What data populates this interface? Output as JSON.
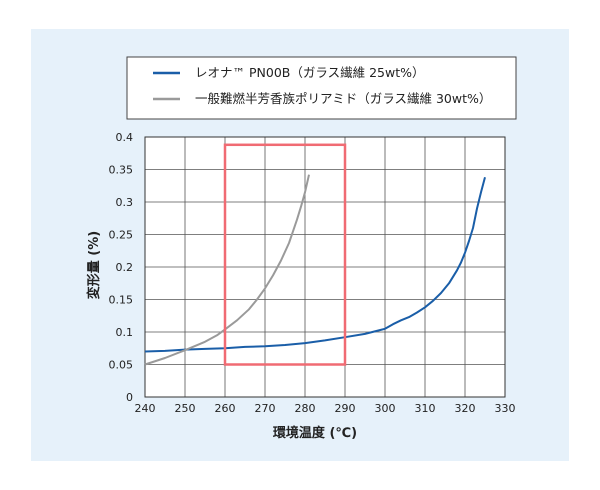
{
  "chart_data": {
    "type": "line",
    "xlabel": "環境温度 (℃)",
    "ylabel": "変形量 (%)",
    "xlim": [
      240,
      330
    ],
    "ylim": [
      0,
      0.4
    ],
    "xticks": [
      240,
      250,
      260,
      270,
      280,
      290,
      300,
      310,
      320,
      330
    ],
    "yticks": [
      0,
      0.05,
      0.1,
      0.15,
      0.2,
      0.25,
      0.3,
      0.35,
      0.4
    ],
    "grid": true,
    "legend_position": "top",
    "series": [
      {
        "name": "レオナ™ PN00B（ガラス繊維 25wt%）",
        "color": "#1a5ea8",
        "x": [
          240,
          245,
          250,
          255,
          260,
          265,
          270,
          275,
          280,
          285,
          290,
          295,
          300,
          302,
          304,
          306,
          308,
          310,
          312,
          314,
          316,
          318,
          319,
          320,
          321,
          322,
          323,
          324,
          325
        ],
        "y": [
          0.07,
          0.071,
          0.073,
          0.074,
          0.075,
          0.077,
          0.078,
          0.08,
          0.083,
          0.087,
          0.092,
          0.097,
          0.105,
          0.112,
          0.118,
          0.123,
          0.13,
          0.138,
          0.148,
          0.16,
          0.175,
          0.195,
          0.207,
          0.222,
          0.24,
          0.26,
          0.29,
          0.315,
          0.338
        ]
      },
      {
        "name": "一般難燃半芳香族ポリアミド（ガラス繊維 30wt%）",
        "color": "#9a9a9a",
        "x": [
          240,
          245,
          250,
          255,
          258,
          260,
          263,
          266,
          268,
          270,
          272,
          274,
          276,
          277,
          278,
          279,
          280,
          281
        ],
        "y": [
          0.05,
          0.06,
          0.072,
          0.085,
          0.095,
          0.104,
          0.118,
          0.135,
          0.15,
          0.167,
          0.187,
          0.21,
          0.237,
          0.255,
          0.273,
          0.293,
          0.315,
          0.342
        ]
      }
    ],
    "highlight_box": {
      "x": [
        260,
        290
      ],
      "y": [
        0.05,
        0.388
      ],
      "color": "#f06b73"
    }
  }
}
